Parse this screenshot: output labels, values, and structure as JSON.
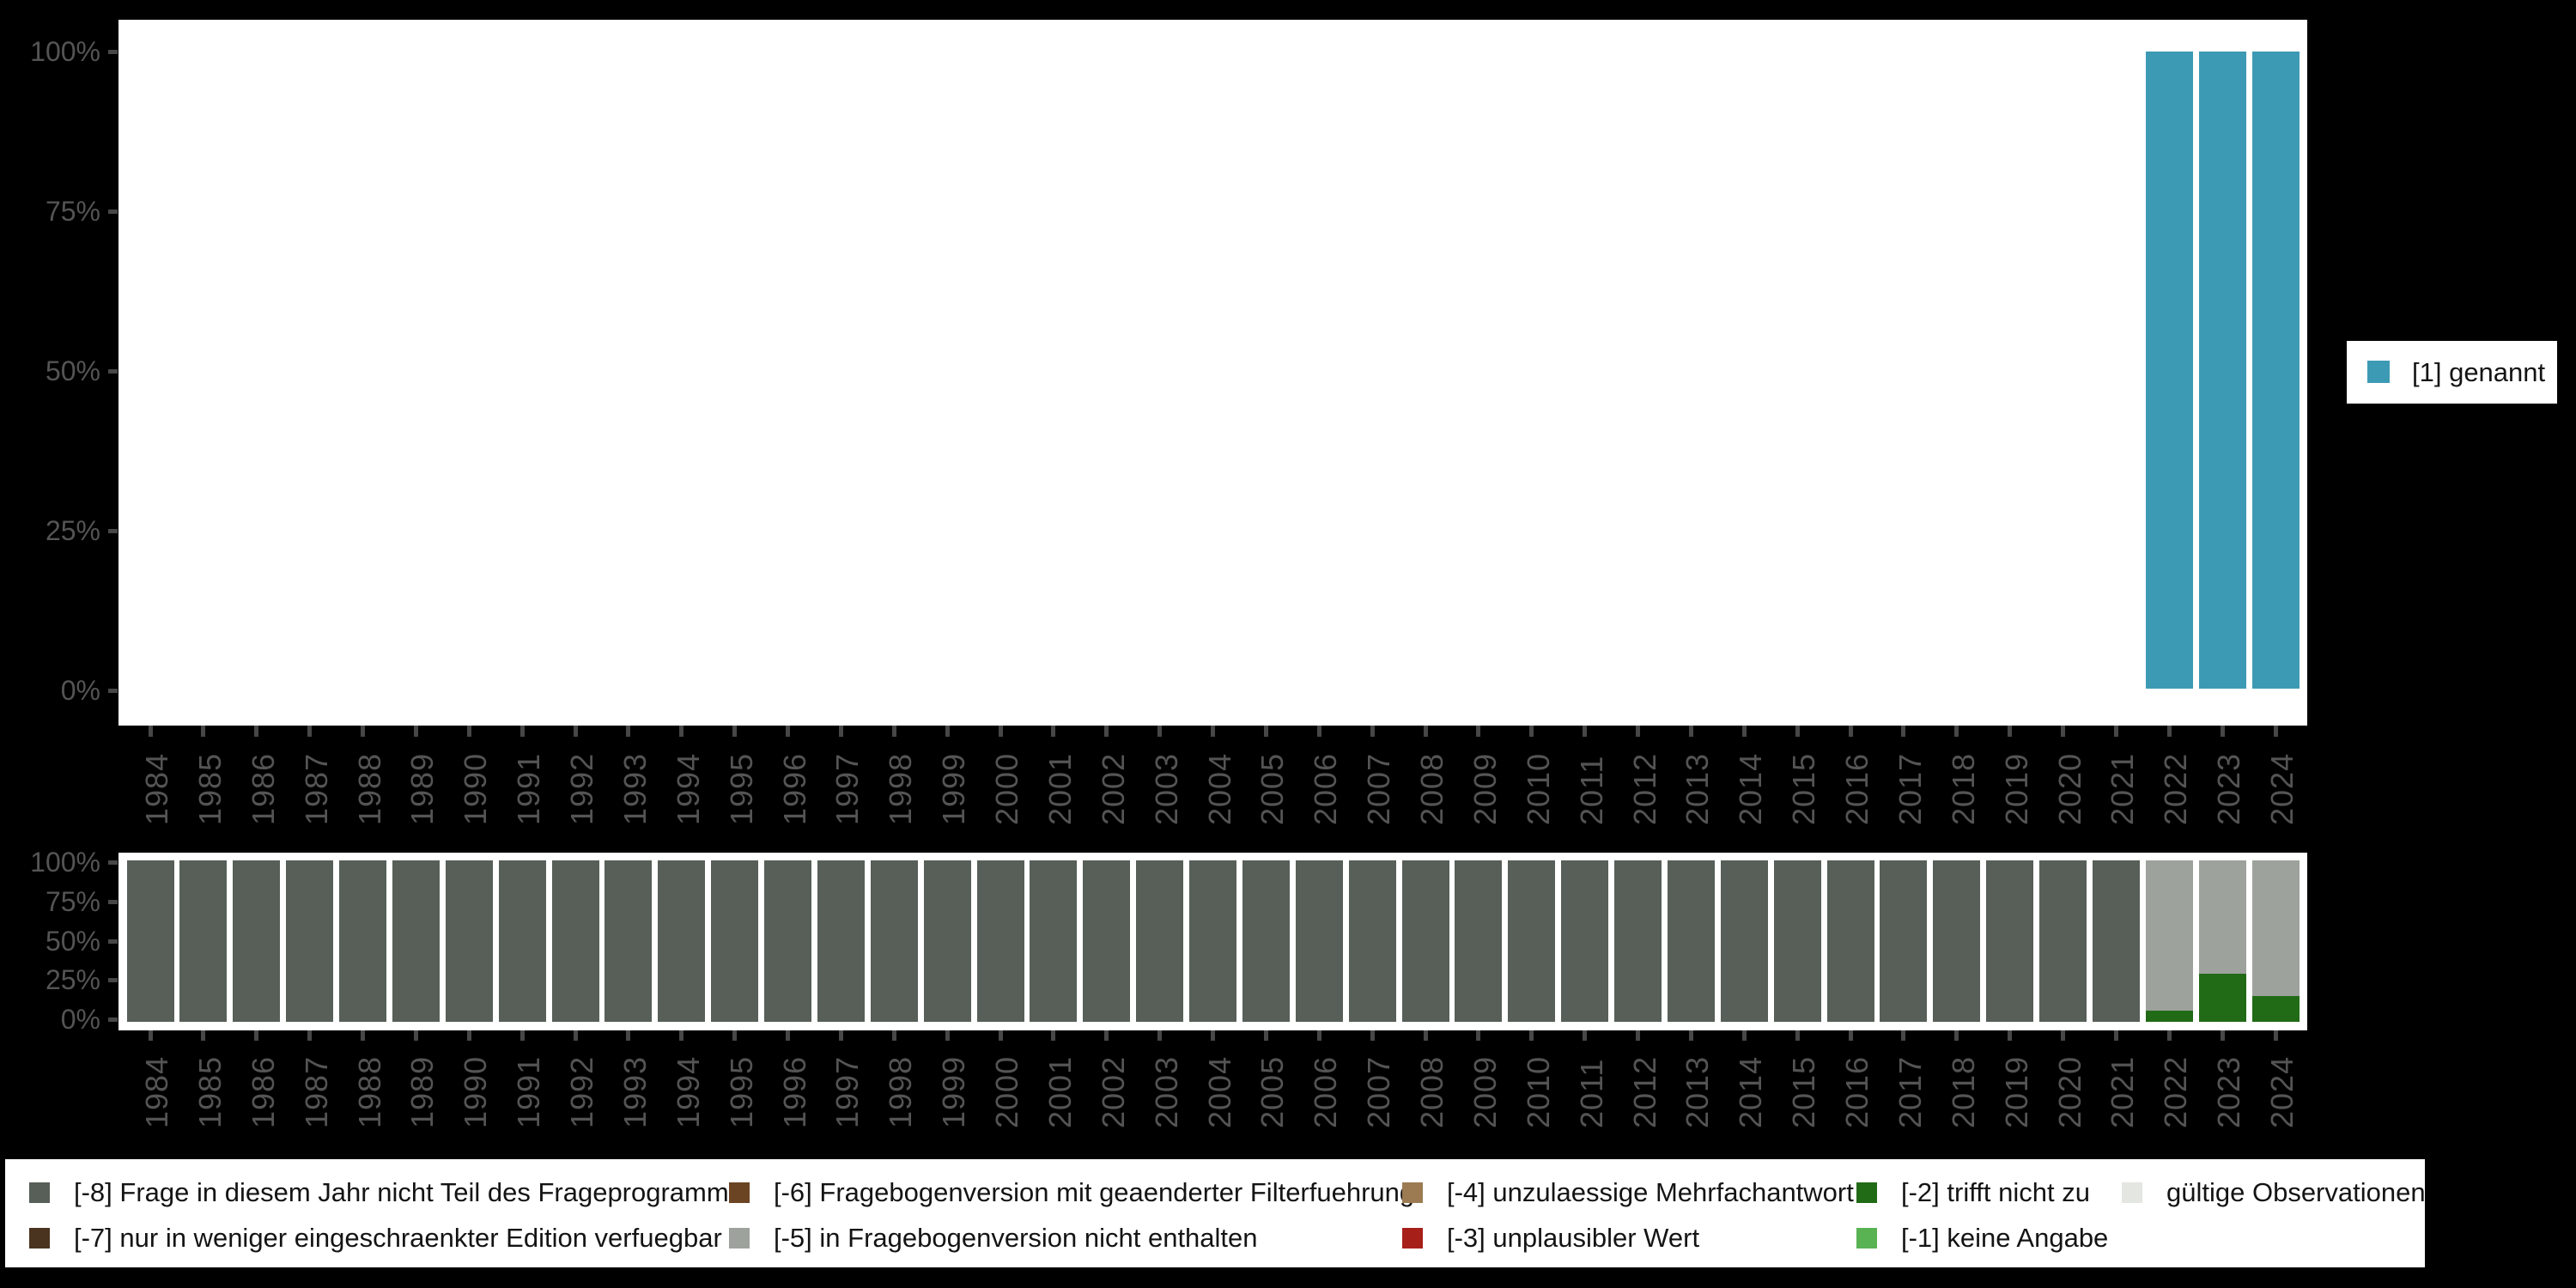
{
  "years": [
    "1984",
    "1985",
    "1986",
    "1987",
    "1988",
    "1989",
    "1990",
    "1991",
    "1992",
    "1993",
    "1994",
    "1995",
    "1996",
    "1997",
    "1998",
    "1999",
    "2000",
    "2001",
    "2002",
    "2003",
    "2004",
    "2005",
    "2006",
    "2007",
    "2008",
    "2009",
    "2010",
    "2011",
    "2012",
    "2013",
    "2014",
    "2015",
    "2016",
    "2017",
    "2018",
    "2019",
    "2020",
    "2021",
    "2022",
    "2023",
    "2024"
  ],
  "axis": {
    "y_tick_labels": [
      "100%",
      "75%",
      "50%",
      "25%",
      "0%"
    ],
    "y_tick_values": [
      100,
      75,
      50,
      25,
      0
    ]
  },
  "colors": {
    "background": "#000000",
    "plot_background": "#FFFFFF",
    "axis_text": "#545454",
    "tick_mark": "#474747",
    "genannt_teal": "#3D9AB4",
    "code_m8": "#575F58",
    "code_m7": "#4A341F",
    "code_m6": "#6B4423",
    "code_m5": "#9DA29C",
    "code_m4": "#9C7B52",
    "code_m3": "#A62019",
    "code_m2": "#216A16",
    "code_m1": "#59B353",
    "valid_obs": "#E3E6E1"
  },
  "top_legend": {
    "label": "[1] genannt",
    "color": "#3D9AB4"
  },
  "missing_legend": {
    "items": [
      {
        "id": "-8",
        "label": "[-8] Frage in diesem Jahr nicht Teil des Frageprogramms",
        "color": "#575F58"
      },
      {
        "id": "-7",
        "label": "[-7] nur in weniger eingeschraenkter Edition verfuegbar",
        "color": "#4A341F"
      },
      {
        "id": "-6",
        "label": "[-6] Fragebogenversion mit geaenderter Filterfuehrung",
        "color": "#6B4423"
      },
      {
        "id": "-5",
        "label": "[-5] in Fragebogenversion nicht enthalten",
        "color": "#9DA29C"
      },
      {
        "id": "-4",
        "label": "[-4] unzulaessige Mehrfachantwort",
        "color": "#9C7B52"
      },
      {
        "id": "-3",
        "label": "[-3] unplausibler Wert",
        "color": "#A62019"
      },
      {
        "id": "-2",
        "label": "[-2] trifft nicht zu",
        "color": "#216A16"
      },
      {
        "id": "-1",
        "label": "[-1] keine Angabe",
        "color": "#59B353"
      },
      {
        "id": "valid",
        "label": "gültige Observationen",
        "color": "#E3E6E1"
      }
    ]
  },
  "chart_data": [
    {
      "id": "answers-by-year",
      "type": "bar",
      "stack": "percent",
      "legend_position": "right",
      "title": "",
      "xlabel": "",
      "ylabel": "",
      "ylim": [
        0,
        100
      ],
      "yticks": [
        "0%",
        "25%",
        "50%",
        "75%",
        "100%"
      ],
      "categories": [
        "1984",
        "1985",
        "1986",
        "1987",
        "1988",
        "1989",
        "1990",
        "1991",
        "1992",
        "1993",
        "1994",
        "1995",
        "1996",
        "1997",
        "1998",
        "1999",
        "2000",
        "2001",
        "2002",
        "2003",
        "2004",
        "2005",
        "2006",
        "2007",
        "2008",
        "2009",
        "2010",
        "2011",
        "2012",
        "2013",
        "2014",
        "2015",
        "2016",
        "2017",
        "2018",
        "2019",
        "2020",
        "2021",
        "2022",
        "2023",
        "2024"
      ],
      "series": [
        {
          "name": "[1] genannt",
          "color": "#3D9AB4",
          "values": [
            null,
            null,
            null,
            null,
            null,
            null,
            null,
            null,
            null,
            null,
            null,
            null,
            null,
            null,
            null,
            null,
            null,
            null,
            null,
            null,
            null,
            null,
            null,
            null,
            null,
            null,
            null,
            null,
            null,
            null,
            null,
            null,
            null,
            null,
            null,
            null,
            null,
            null,
            100,
            100,
            100
          ]
        }
      ]
    },
    {
      "id": "missing-codes-by-year",
      "type": "bar",
      "stack": "percent",
      "legend_position": "bottom",
      "title": "",
      "xlabel": "",
      "ylabel": "",
      "ylim": [
        0,
        100
      ],
      "yticks": [
        "0%",
        "25%",
        "50%",
        "75%",
        "100%"
      ],
      "categories": [
        "1984",
        "1985",
        "1986",
        "1987",
        "1988",
        "1989",
        "1990",
        "1991",
        "1992",
        "1993",
        "1994",
        "1995",
        "1996",
        "1997",
        "1998",
        "1999",
        "2000",
        "2001",
        "2002",
        "2003",
        "2004",
        "2005",
        "2006",
        "2007",
        "2008",
        "2009",
        "2010",
        "2011",
        "2012",
        "2013",
        "2014",
        "2015",
        "2016",
        "2017",
        "2018",
        "2019",
        "2020",
        "2021",
        "2022",
        "2023",
        "2024"
      ],
      "series": [
        {
          "name": "[-8] Frage in diesem Jahr nicht Teil des Frageprogramms",
          "color": "#575F58",
          "values": [
            100,
            100,
            100,
            100,
            100,
            100,
            100,
            100,
            100,
            100,
            100,
            100,
            100,
            100,
            100,
            100,
            100,
            100,
            100,
            100,
            100,
            100,
            100,
            100,
            100,
            100,
            100,
            100,
            100,
            100,
            100,
            100,
            100,
            100,
            100,
            100,
            100,
            100,
            0,
            0,
            0
          ]
        },
        {
          "name": "[-5] in Fragebogenversion nicht enthalten",
          "color": "#9DA29C",
          "values": [
            0,
            0,
            0,
            0,
            0,
            0,
            0,
            0,
            0,
            0,
            0,
            0,
            0,
            0,
            0,
            0,
            0,
            0,
            0,
            0,
            0,
            0,
            0,
            0,
            0,
            0,
            0,
            0,
            0,
            0,
            0,
            0,
            0,
            0,
            0,
            0,
            0,
            0,
            93,
            70,
            84
          ]
        },
        {
          "name": "[-2] trifft nicht zu",
          "color": "#216A16",
          "values": [
            0,
            0,
            0,
            0,
            0,
            0,
            0,
            0,
            0,
            0,
            0,
            0,
            0,
            0,
            0,
            0,
            0,
            0,
            0,
            0,
            0,
            0,
            0,
            0,
            0,
            0,
            0,
            0,
            0,
            0,
            0,
            0,
            0,
            0,
            0,
            0,
            0,
            0,
            7,
            30,
            16
          ]
        }
      ]
    }
  ]
}
